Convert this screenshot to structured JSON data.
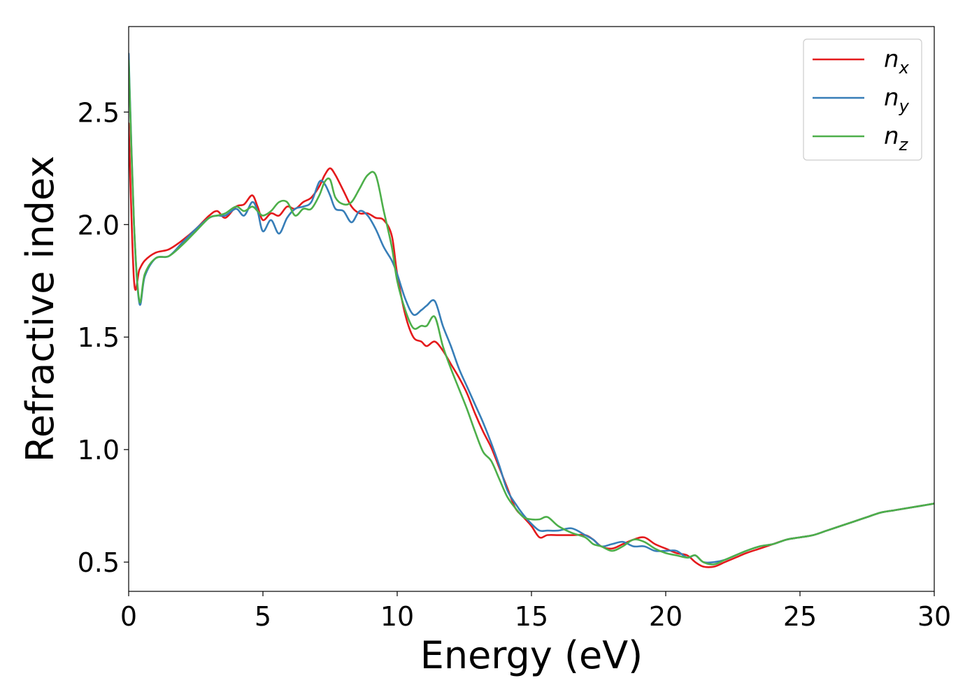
{
  "chart_data": {
    "type": "line",
    "title": "",
    "xlabel": "Energy (eV)",
    "ylabel": "Refractive index",
    "xlim": [
      0,
      30
    ],
    "ylim": [
      0.37,
      2.88
    ],
    "xticks": [
      0,
      5,
      10,
      15,
      20,
      25,
      30
    ],
    "xtick_labels": [
      "0",
      "5",
      "10",
      "15",
      "20",
      "25",
      "30"
    ],
    "yticks": [
      0.5,
      1.0,
      1.5,
      2.0,
      2.5
    ],
    "ytick_labels": [
      "0.5",
      "1.0",
      "1.5",
      "2.0",
      "2.5"
    ],
    "grid": false,
    "legend_position": "top-right",
    "series": [
      {
        "name": "n_x",
        "legend_base": "n",
        "legend_sub": "x",
        "color": "#e41a1c",
        "x": [
          0,
          0.2,
          0.4,
          0.6,
          1.0,
          1.5,
          2.0,
          2.5,
          3.0,
          3.3,
          3.6,
          4.0,
          4.3,
          4.6,
          4.8,
          5.0,
          5.3,
          5.6,
          5.9,
          6.2,
          6.5,
          6.8,
          7.1,
          7.3,
          7.5,
          7.7,
          8.0,
          8.3,
          8.6,
          8.9,
          9.2,
          9.5,
          9.8,
          10.0,
          10.3,
          10.6,
          10.9,
          11.1,
          11.4,
          11.7,
          12.0,
          12.3,
          12.6,
          12.9,
          13.2,
          13.5,
          13.8,
          14.1,
          14.4,
          14.7,
          15.0,
          15.3,
          15.6,
          16.0,
          16.5,
          17.0,
          17.3,
          17.6,
          18.0,
          18.4,
          18.8,
          19.2,
          19.6,
          20.0,
          20.4,
          20.8,
          21.1,
          21.4,
          21.8,
          22.2,
          22.6,
          23.0,
          23.5,
          24.0,
          24.5,
          25.0,
          25.5,
          26.0,
          26.5,
          27.0,
          27.5,
          28.0,
          28.5,
          29.0,
          29.5,
          30.0
        ],
        "y": [
          2.45,
          1.75,
          1.8,
          1.84,
          1.875,
          1.89,
          1.93,
          1.98,
          2.04,
          2.06,
          2.03,
          2.08,
          2.09,
          2.13,
          2.08,
          2.02,
          2.05,
          2.04,
          2.08,
          2.07,
          2.1,
          2.12,
          2.17,
          2.22,
          2.25,
          2.22,
          2.15,
          2.08,
          2.05,
          2.05,
          2.03,
          2.02,
          1.95,
          1.78,
          1.6,
          1.5,
          1.48,
          1.46,
          1.48,
          1.44,
          1.38,
          1.32,
          1.25,
          1.16,
          1.08,
          1.01,
          0.92,
          0.83,
          0.74,
          0.7,
          0.66,
          0.61,
          0.62,
          0.62,
          0.62,
          0.62,
          0.6,
          0.57,
          0.56,
          0.58,
          0.6,
          0.61,
          0.58,
          0.56,
          0.54,
          0.53,
          0.5,
          0.48,
          0.48,
          0.5,
          0.52,
          0.54,
          0.56,
          0.58,
          0.6,
          0.61,
          0.62,
          0.64,
          0.66,
          0.68,
          0.7,
          0.72,
          0.73,
          0.74,
          0.75,
          0.76
        ]
      },
      {
        "name": "n_y",
        "legend_base": "n",
        "legend_sub": "y",
        "color": "#377eb8",
        "x": [
          0,
          0.2,
          0.4,
          0.6,
          1.0,
          1.5,
          2.0,
          2.5,
          3.0,
          3.3,
          3.6,
          4.0,
          4.3,
          4.6,
          4.8,
          5.0,
          5.3,
          5.6,
          5.9,
          6.2,
          6.5,
          6.8,
          7.1,
          7.3,
          7.5,
          7.7,
          8.0,
          8.3,
          8.6,
          8.9,
          9.2,
          9.5,
          9.8,
          10.0,
          10.3,
          10.6,
          10.9,
          11.1,
          11.4,
          11.7,
          12.0,
          12.3,
          12.6,
          12.9,
          13.2,
          13.5,
          13.8,
          14.1,
          14.4,
          14.7,
          15.0,
          15.3,
          15.6,
          16.0,
          16.5,
          17.0,
          17.3,
          17.6,
          18.0,
          18.4,
          18.8,
          19.2,
          19.6,
          20.0,
          20.4,
          20.8,
          21.1,
          21.4,
          21.8,
          22.2,
          22.6,
          23.0,
          23.5,
          24.0,
          24.5,
          25.0,
          25.5,
          26.0,
          26.5,
          27.0,
          27.5,
          28.0,
          28.5,
          29.0,
          29.5,
          30.0
        ],
        "y": [
          2.76,
          2.0,
          1.65,
          1.77,
          1.85,
          1.86,
          1.92,
          1.98,
          2.03,
          2.04,
          2.04,
          2.07,
          2.04,
          2.1,
          2.06,
          1.97,
          2.02,
          1.96,
          2.03,
          2.07,
          2.08,
          2.1,
          2.19,
          2.18,
          2.13,
          2.07,
          2.06,
          2.01,
          2.06,
          2.04,
          1.98,
          1.9,
          1.84,
          1.78,
          1.67,
          1.6,
          1.62,
          1.64,
          1.66,
          1.55,
          1.46,
          1.36,
          1.28,
          1.2,
          1.12,
          1.03,
          0.93,
          0.82,
          0.76,
          0.71,
          0.67,
          0.64,
          0.64,
          0.64,
          0.65,
          0.62,
          0.6,
          0.57,
          0.58,
          0.59,
          0.57,
          0.57,
          0.55,
          0.55,
          0.55,
          0.52,
          0.53,
          0.5,
          0.5,
          0.51,
          0.53,
          0.55,
          0.57,
          0.58,
          0.6,
          0.61,
          0.62,
          0.64,
          0.66,
          0.68,
          0.7,
          0.72,
          0.73,
          0.74,
          0.75,
          0.76
        ]
      },
      {
        "name": "n_z",
        "legend_base": "n",
        "legend_sub": "z",
        "color": "#4daf4a",
        "x": [
          0,
          0.2,
          0.4,
          0.6,
          1.0,
          1.5,
          2.0,
          2.5,
          3.0,
          3.3,
          3.6,
          4.0,
          4.3,
          4.6,
          4.8,
          5.0,
          5.3,
          5.6,
          5.9,
          6.2,
          6.5,
          6.8,
          7.1,
          7.3,
          7.5,
          7.7,
          8.0,
          8.3,
          8.6,
          8.9,
          9.2,
          9.5,
          9.8,
          10.0,
          10.3,
          10.6,
          10.9,
          11.1,
          11.4,
          11.7,
          12.0,
          12.3,
          12.6,
          12.9,
          13.2,
          13.5,
          13.8,
          14.1,
          14.4,
          14.7,
          15.0,
          15.3,
          15.6,
          16.0,
          16.5,
          17.0,
          17.3,
          17.6,
          18.0,
          18.4,
          18.8,
          19.2,
          19.6,
          20.0,
          20.4,
          20.8,
          21.1,
          21.4,
          21.8,
          22.2,
          22.6,
          23.0,
          23.5,
          24.0,
          24.5,
          25.0,
          25.5,
          26.0,
          26.5,
          27.0,
          27.5,
          28.0,
          28.5,
          29.0,
          29.5,
          30.0
        ],
        "y": [
          2.73,
          2.0,
          1.66,
          1.78,
          1.85,
          1.86,
          1.91,
          1.97,
          2.03,
          2.04,
          2.05,
          2.08,
          2.06,
          2.08,
          2.06,
          2.04,
          2.06,
          2.1,
          2.1,
          2.04,
          2.07,
          2.07,
          2.13,
          2.19,
          2.2,
          2.12,
          2.09,
          2.1,
          2.16,
          2.22,
          2.22,
          2.06,
          1.9,
          1.75,
          1.62,
          1.54,
          1.55,
          1.55,
          1.59,
          1.46,
          1.36,
          1.27,
          1.18,
          1.08,
          0.99,
          0.95,
          0.87,
          0.79,
          0.74,
          0.7,
          0.69,
          0.69,
          0.7,
          0.66,
          0.63,
          0.61,
          0.58,
          0.57,
          0.55,
          0.57,
          0.6,
          0.59,
          0.56,
          0.54,
          0.53,
          0.52,
          0.53,
          0.5,
          0.49,
          0.51,
          0.53,
          0.55,
          0.57,
          0.58,
          0.6,
          0.61,
          0.62,
          0.64,
          0.66,
          0.68,
          0.7,
          0.72,
          0.73,
          0.74,
          0.75,
          0.76
        ]
      }
    ]
  }
}
